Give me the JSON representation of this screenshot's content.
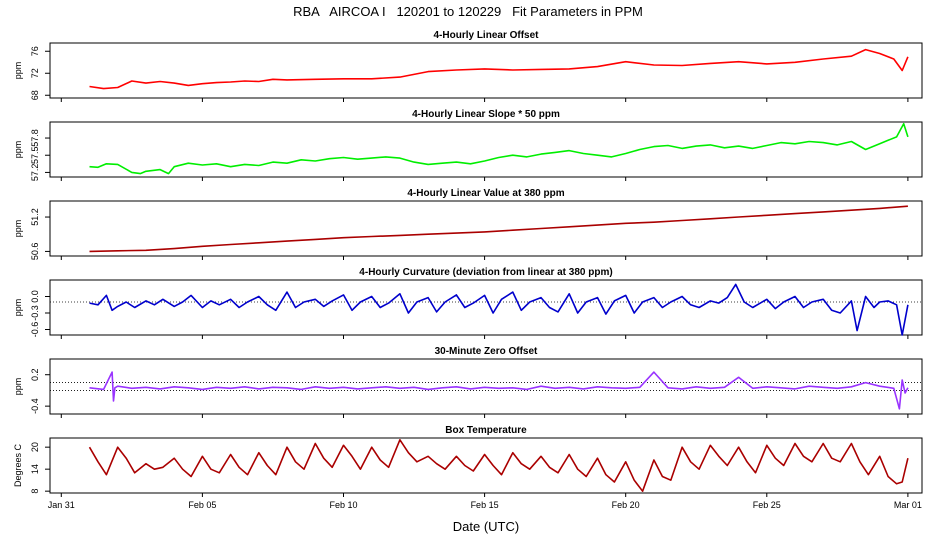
{
  "title": "RBA   AIRCOA I   120201 to 120229   Fit Parameters in PPM",
  "xlabel": "Date (UTC)",
  "x_ticks": [
    {
      "label": "Jan 31",
      "day": 0
    },
    {
      "label": "Feb 05",
      "day": 5
    },
    {
      "label": "Feb 10",
      "day": 10
    },
    {
      "label": "Feb 15",
      "day": 15
    },
    {
      "label": "Feb 20",
      "day": 20
    },
    {
      "label": "Feb 25",
      "day": 25
    },
    {
      "label": "Mar 01",
      "day": 30
    }
  ],
  "xlim_days": [
    -0.4,
    30.5
  ],
  "chart_data": [
    {
      "type": "line",
      "title": "4-Hourly Linear Offset",
      "ylabel": "ppm",
      "color": "#ff0000",
      "ylim": [
        67.5,
        77.5
      ],
      "yticks": [
        {
          "v": 68,
          "label": "68"
        },
        {
          "v": 72,
          "label": "72"
        },
        {
          "v": 76,
          "label": "76"
        }
      ],
      "hlines": [],
      "series": {
        "x": [
          1.0,
          1.5,
          2.0,
          2.5,
          3.0,
          3.5,
          4.0,
          4.5,
          5.0,
          5.5,
          6.0,
          6.5,
          7.0,
          7.5,
          8.0,
          9.0,
          10.0,
          11.0,
          12.0,
          12.5,
          13.0,
          14.0,
          15.0,
          16.0,
          17.0,
          18.0,
          19.0,
          20.0,
          21.0,
          22.0,
          23.0,
          24.0,
          25.0,
          26.0,
          27.0,
          28.0,
          28.5,
          29.0,
          29.5,
          29.8,
          30.0
        ],
        "y": [
          69.6,
          69.2,
          69.4,
          70.6,
          70.2,
          70.5,
          70.2,
          69.8,
          70.1,
          70.3,
          70.4,
          70.6,
          70.5,
          70.9,
          70.8,
          70.9,
          71.0,
          71.0,
          71.3,
          71.8,
          72.3,
          72.6,
          72.8,
          72.6,
          72.7,
          72.8,
          73.2,
          74.1,
          73.5,
          73.4,
          73.8,
          74.1,
          73.7,
          74.0,
          74.6,
          75.1,
          76.3,
          75.6,
          74.6,
          72.5,
          75.0
        ]
      }
    },
    {
      "type": "line",
      "title": "4-Hourly Linear Slope * 50 ppm",
      "ylabel": "ppm",
      "color": "#00ee00",
      "ylim": [
        57.12,
        58.08
      ],
      "yticks": [
        {
          "v": 57.2,
          "label": "57.2"
        },
        {
          "v": 57.5,
          "label": "57.5"
        },
        {
          "v": 57.8,
          "label": "57.8"
        }
      ],
      "hlines": [],
      "series": {
        "x": [
          1.0,
          1.3,
          1.6,
          2.0,
          2.5,
          2.8,
          3.0,
          3.5,
          3.8,
          4.0,
          4.5,
          5.0,
          5.5,
          6.0,
          6.5,
          7.0,
          7.5,
          8.0,
          8.5,
          9.0,
          9.5,
          10.0,
          10.5,
          11.0,
          11.5,
          12.0,
          12.5,
          13.0,
          13.5,
          14.0,
          14.5,
          15.0,
          15.5,
          16.0,
          16.5,
          17.0,
          17.5,
          18.0,
          18.5,
          19.0,
          19.5,
          20.0,
          20.5,
          21.0,
          21.5,
          22.0,
          22.5,
          23.0,
          23.5,
          24.0,
          24.5,
          25.0,
          25.5,
          26.0,
          26.5,
          27.0,
          27.5,
          28.0,
          28.5,
          29.0,
          29.3,
          29.6,
          29.85,
          30.0
        ],
        "y": [
          57.3,
          57.29,
          57.35,
          57.34,
          57.2,
          57.18,
          57.22,
          57.25,
          57.18,
          57.3,
          57.36,
          57.33,
          57.35,
          57.3,
          57.34,
          57.32,
          57.38,
          57.36,
          57.42,
          57.4,
          57.44,
          57.46,
          57.43,
          57.45,
          57.47,
          57.45,
          57.38,
          57.34,
          57.36,
          57.38,
          57.35,
          57.4,
          57.46,
          57.5,
          57.47,
          57.52,
          57.55,
          57.58,
          57.53,
          57.5,
          57.47,
          57.53,
          57.6,
          57.65,
          57.67,
          57.62,
          57.66,
          57.68,
          57.63,
          57.66,
          57.62,
          57.67,
          57.72,
          57.7,
          57.74,
          57.72,
          57.68,
          57.74,
          57.6,
          57.7,
          57.76,
          57.82,
          58.05,
          57.82
        ]
      }
    },
    {
      "type": "line",
      "title": "4-Hourly Linear Value at 380 ppm",
      "ylabel": "ppm",
      "color": "#aa0000",
      "ylim": [
        50.52,
        51.48
      ],
      "yticks": [
        {
          "v": 50.6,
          "label": "50.6"
        },
        {
          "v": 51.2,
          "label": "51.2"
        }
      ],
      "hlines": [],
      "series": {
        "x": [
          1.0,
          2.0,
          3.0,
          4.0,
          5.0,
          6.0,
          7.0,
          8.0,
          9.0,
          10.0,
          11.0,
          12.0,
          13.0,
          14.0,
          15.0,
          16.0,
          17.0,
          18.0,
          19.0,
          20.0,
          21.0,
          22.0,
          23.0,
          24.0,
          25.0,
          26.0,
          27.0,
          28.0,
          29.0,
          30.0
        ],
        "y": [
          50.6,
          50.61,
          50.62,
          50.65,
          50.69,
          50.72,
          50.75,
          50.78,
          50.81,
          50.84,
          50.86,
          50.88,
          50.9,
          50.92,
          50.94,
          50.97,
          51.0,
          51.03,
          51.06,
          51.09,
          51.11,
          51.14,
          51.17,
          51.2,
          51.23,
          51.26,
          51.29,
          51.32,
          51.35,
          51.39
        ]
      }
    },
    {
      "type": "line",
      "title": "4-Hourly Curvature (deviation from linear at 380 ppm)",
      "ylabel": "ppm",
      "color": "#0000cc",
      "ylim": [
        -0.7,
        0.3
      ],
      "yticks": [
        {
          "v": -0.6,
          "label": "-0.6"
        },
        {
          "v": -0.3,
          "label": "-0.3"
        },
        {
          "v": 0.0,
          "label": "0.0"
        }
      ],
      "hlines": [
        {
          "y": -0.1,
          "style": "dotted"
        }
      ],
      "series": {
        "x": [
          1.0,
          1.3,
          1.6,
          1.8,
          2.0,
          2.3,
          2.6,
          3.0,
          3.3,
          3.6,
          4.0,
          4.3,
          4.6,
          5.0,
          5.3,
          5.6,
          6.0,
          6.3,
          6.6,
          7.0,
          7.3,
          7.6,
          8.0,
          8.3,
          8.6,
          9.0,
          9.3,
          9.6,
          10.0,
          10.3,
          10.6,
          11.0,
          11.3,
          11.6,
          12.0,
          12.3,
          12.6,
          13.0,
          13.3,
          13.6,
          14.0,
          14.3,
          14.6,
          15.0,
          15.3,
          15.6,
          16.0,
          16.3,
          16.6,
          17.0,
          17.3,
          17.6,
          18.0,
          18.3,
          18.6,
          19.0,
          19.3,
          19.6,
          20.0,
          20.3,
          20.6,
          21.0,
          21.3,
          21.6,
          22.0,
          22.3,
          22.6,
          23.0,
          23.3,
          23.6,
          23.9,
          24.2,
          24.5,
          25.0,
          25.3,
          25.6,
          26.0,
          26.3,
          26.6,
          27.0,
          27.3,
          27.6,
          28.0,
          28.2,
          28.5,
          28.8,
          29.0,
          29.3,
          29.6,
          29.8,
          30.0
        ],
        "y": [
          -0.12,
          -0.15,
          0.02,
          -0.25,
          -0.18,
          -0.1,
          -0.2,
          -0.08,
          -0.15,
          -0.05,
          -0.18,
          -0.1,
          0.02,
          -0.2,
          -0.08,
          -0.15,
          -0.05,
          -0.2,
          -0.1,
          0.0,
          -0.15,
          -0.25,
          0.08,
          -0.2,
          -0.1,
          -0.05,
          -0.18,
          -0.08,
          0.03,
          -0.25,
          -0.1,
          0.0,
          -0.2,
          -0.12,
          0.05,
          -0.3,
          -0.1,
          -0.02,
          -0.28,
          -0.1,
          0.03,
          -0.2,
          -0.12,
          0.02,
          -0.3,
          -0.05,
          0.08,
          -0.25,
          -0.1,
          -0.02,
          -0.2,
          -0.28,
          0.05,
          -0.3,
          -0.1,
          -0.02,
          -0.32,
          -0.08,
          0.02,
          -0.3,
          -0.1,
          -0.02,
          -0.2,
          -0.1,
          0.0,
          -0.15,
          -0.2,
          -0.08,
          -0.12,
          -0.02,
          0.22,
          -0.1,
          -0.2,
          -0.05,
          -0.22,
          -0.1,
          0.0,
          -0.2,
          -0.1,
          -0.05,
          -0.25,
          -0.3,
          -0.08,
          -0.62,
          0.0,
          -0.2,
          -0.1,
          -0.08,
          -0.15,
          -0.7,
          -0.15
        ]
      }
    },
    {
      "type": "line",
      "title": "30-Minute Zero Offset",
      "ylabel": "ppm",
      "color": "#9933ff",
      "ylim": [
        -0.55,
        0.5
      ],
      "yticks": [
        {
          "v": -0.4,
          "label": "-0.4"
        },
        {
          "v": 0.2,
          "label": "0.2"
        }
      ],
      "hlines": [
        {
          "y": 0.05,
          "style": "dotted"
        },
        {
          "y": -0.1,
          "style": "dotted"
        }
      ],
      "series": {
        "x": [
          1.0,
          1.5,
          1.8,
          1.85,
          1.9,
          2.0,
          2.5,
          3.0,
          3.5,
          4.0,
          4.5,
          5.0,
          5.5,
          6.0,
          6.5,
          7.0,
          7.5,
          8.0,
          8.5,
          9.0,
          9.5,
          10.0,
          10.5,
          11.0,
          11.5,
          12.0,
          12.5,
          13.0,
          13.5,
          14.0,
          14.5,
          15.0,
          15.5,
          16.0,
          16.5,
          17.0,
          17.5,
          18.0,
          18.5,
          19.0,
          19.5,
          20.0,
          20.5,
          21.0,
          21.5,
          22.0,
          22.5,
          23.0,
          23.5,
          24.0,
          24.5,
          25.0,
          25.5,
          26.0,
          26.5,
          27.0,
          27.5,
          28.0,
          28.5,
          29.0,
          29.5,
          29.7,
          29.8,
          29.9,
          30.0
        ],
        "y": [
          -0.05,
          -0.08,
          0.25,
          -0.3,
          -0.05,
          -0.02,
          -0.06,
          -0.04,
          -0.07,
          -0.03,
          -0.05,
          -0.08,
          -0.04,
          -0.06,
          -0.03,
          -0.07,
          -0.04,
          -0.05,
          -0.08,
          -0.03,
          -0.06,
          -0.04,
          -0.07,
          -0.05,
          -0.03,
          -0.06,
          -0.04,
          -0.08,
          -0.05,
          -0.03,
          -0.07,
          -0.04,
          -0.06,
          -0.05,
          -0.08,
          -0.02,
          -0.06,
          -0.04,
          -0.07,
          -0.03,
          -0.05,
          -0.06,
          -0.04,
          0.25,
          -0.05,
          -0.07,
          -0.03,
          -0.06,
          -0.04,
          0.15,
          -0.06,
          -0.03,
          -0.05,
          -0.07,
          -0.02,
          -0.04,
          -0.06,
          -0.03,
          0.05,
          -0.02,
          -0.06,
          -0.45,
          0.1,
          -0.15,
          -0.05
        ]
      }
    },
    {
      "type": "line",
      "title": "Box Temperature",
      "ylabel": "Degrees C",
      "color": "#aa0000",
      "ylim": [
        7.5,
        22.5
      ],
      "yticks": [
        {
          "v": 8,
          "label": "8"
        },
        {
          "v": 14,
          "label": "14"
        },
        {
          "v": 20,
          "label": "20"
        }
      ],
      "hlines": [],
      "series": {
        "x": [
          1.0,
          1.3,
          1.6,
          2.0,
          2.3,
          2.6,
          3.0,
          3.3,
          3.6,
          4.0,
          4.3,
          4.6,
          5.0,
          5.3,
          5.6,
          6.0,
          6.3,
          6.6,
          7.0,
          7.3,
          7.6,
          8.0,
          8.3,
          8.6,
          9.0,
          9.3,
          9.6,
          10.0,
          10.3,
          10.6,
          11.0,
          11.3,
          11.6,
          12.0,
          12.3,
          12.6,
          13.0,
          13.3,
          13.6,
          14.0,
          14.3,
          14.6,
          15.0,
          15.3,
          15.6,
          16.0,
          16.3,
          16.6,
          17.0,
          17.3,
          17.6,
          18.0,
          18.3,
          18.6,
          19.0,
          19.3,
          19.6,
          20.0,
          20.3,
          20.6,
          21.0,
          21.3,
          21.6,
          22.0,
          22.3,
          22.6,
          23.0,
          23.3,
          23.6,
          24.0,
          24.3,
          24.6,
          25.0,
          25.3,
          25.6,
          26.0,
          26.3,
          26.6,
          27.0,
          27.3,
          27.6,
          28.0,
          28.3,
          28.6,
          29.0,
          29.3,
          29.6,
          29.8,
          30.0
        ],
        "y": [
          20.0,
          16.0,
          12.5,
          20.0,
          17.0,
          13.0,
          15.5,
          14.0,
          14.5,
          17.0,
          14.0,
          12.0,
          17.5,
          14.0,
          13.0,
          18.0,
          14.5,
          12.5,
          18.5,
          15.0,
          12.5,
          20.0,
          16.0,
          14.0,
          21.0,
          17.0,
          14.5,
          20.5,
          17.5,
          14.0,
          20.0,
          16.5,
          14.5,
          22.0,
          18.5,
          16.0,
          17.5,
          15.5,
          14.0,
          17.5,
          15.0,
          13.5,
          18.0,
          15.0,
          12.5,
          18.5,
          15.5,
          14.0,
          17.5,
          14.5,
          13.0,
          18.0,
          14.0,
          12.0,
          17.0,
          12.5,
          10.5,
          16.0,
          11.0,
          8.0,
          16.5,
          12.0,
          11.0,
          20.0,
          16.0,
          14.0,
          20.5,
          17.5,
          15.0,
          20.0,
          16.0,
          13.0,
          20.5,
          17.0,
          15.0,
          21.0,
          17.5,
          16.0,
          21.0,
          17.0,
          16.0,
          21.0,
          16.0,
          12.5,
          17.5,
          12.0,
          10.0,
          10.5,
          17.0
        ]
      }
    }
  ]
}
